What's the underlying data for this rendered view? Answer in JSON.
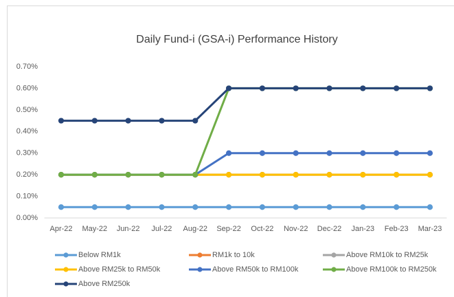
{
  "chart_data": {
    "type": "line",
    "title": "Daily Fund-i (GSA-i) Performance History",
    "categories": [
      "Apr-22",
      "May-22",
      "Jun-22",
      "Jul-22",
      "Aug-22",
      "Sep-22",
      "Oct-22",
      "Nov-22",
      "Dec-22",
      "Jan-23",
      "Feb-23",
      "Mar-23"
    ],
    "ylim": [
      0,
      0.7
    ],
    "yticks": [
      {
        "value": 0,
        "label": "0.00%"
      },
      {
        "value": 0.1,
        "label": "0.10%"
      },
      {
        "value": 0.2,
        "label": "0.20%"
      },
      {
        "value": 0.3,
        "label": "0.30%"
      },
      {
        "value": 0.4,
        "label": "0.40%"
      },
      {
        "value": 0.5,
        "label": "0.50%"
      },
      {
        "value": 0.6,
        "label": "0.60%"
      },
      {
        "value": 0.7,
        "label": "0.70%"
      }
    ],
    "grid": false,
    "legend": "bottom",
    "series": [
      {
        "name": "Below RM1k",
        "color": "#5b9bd5",
        "values": [
          0.05,
          0.05,
          0.05,
          0.05,
          0.05,
          0.05,
          0.05,
          0.05,
          0.05,
          0.05,
          0.05,
          0.05
        ]
      },
      {
        "name": "RM1k to 10k",
        "color": "#ed7d31",
        "values": [
          0.2,
          0.2,
          0.2,
          0.2,
          0.2,
          0.2,
          0.2,
          0.2,
          0.2,
          0.2,
          0.2,
          0.2
        ]
      },
      {
        "name": "Above RM10k to RM25k",
        "color": "#a5a5a5",
        "values": [
          0.2,
          0.2,
          0.2,
          0.2,
          0.2,
          0.2,
          0.2,
          0.2,
          0.2,
          0.2,
          0.2,
          0.2
        ]
      },
      {
        "name": "Above RM25k to RM50k",
        "color": "#ffc000",
        "values": [
          0.2,
          0.2,
          0.2,
          0.2,
          0.2,
          0.2,
          0.2,
          0.2,
          0.2,
          0.2,
          0.2,
          0.2
        ]
      },
      {
        "name": "Above RM50k to RM100k",
        "color": "#4472c4",
        "values": [
          0.2,
          0.2,
          0.2,
          0.2,
          0.2,
          0.3,
          0.3,
          0.3,
          0.3,
          0.3,
          0.3,
          0.3
        ]
      },
      {
        "name": "Above RM100k to RM250k",
        "color": "#70ad47",
        "values": [
          0.2,
          0.2,
          0.2,
          0.2,
          0.2,
          0.6,
          0.6,
          0.6,
          0.6,
          0.6,
          0.6,
          0.6
        ]
      },
      {
        "name": "Above RM250k",
        "color": "#264478",
        "values": [
          0.45,
          0.45,
          0.45,
          0.45,
          0.45,
          0.6,
          0.6,
          0.6,
          0.6,
          0.6,
          0.6,
          0.6
        ]
      }
    ]
  }
}
